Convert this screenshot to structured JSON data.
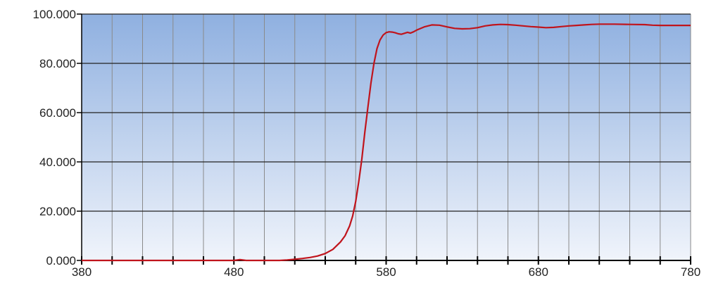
{
  "chart_data": {
    "type": "line",
    "title": "",
    "xlabel": "",
    "ylabel": "",
    "xlim": [
      380,
      780
    ],
    "ylim": [
      0,
      100
    ],
    "x_ticks": [
      380,
      400,
      420,
      440,
      460,
      480,
      500,
      520,
      540,
      560,
      580,
      600,
      620,
      640,
      660,
      680,
      700,
      720,
      740,
      760,
      780
    ],
    "x_tick_labels": [
      "380",
      "480",
      "580",
      "680",
      "780"
    ],
    "x_tick_label_values": [
      380,
      480,
      580,
      680,
      780
    ],
    "y_ticks": [
      0,
      20,
      40,
      60,
      80,
      100
    ],
    "y_tick_labels": [
      "0.000",
      "20.000",
      "40.000",
      "60.000",
      "80.000",
      "100.000"
    ],
    "grid": true,
    "plot_background": "gradient from #8fb0e0 (top) to #f0f4fb (bottom)",
    "series": [
      {
        "color": "#c0141c",
        "x": [
          380,
          420,
          460,
          480,
          484,
          488,
          500,
          510,
          515,
          520,
          525,
          530,
          535,
          540,
          545,
          550,
          553,
          556,
          558,
          560,
          562,
          564,
          566,
          568,
          570,
          572,
          574,
          576,
          578,
          580,
          582,
          584,
          586,
          588,
          590,
          592,
          594,
          596,
          598,
          600,
          605,
          610,
          615,
          620,
          625,
          630,
          635,
          640,
          645,
          650,
          655,
          660,
          665,
          670,
          675,
          680,
          685,
          690,
          695,
          700,
          705,
          710,
          715,
          720,
          730,
          740,
          750,
          755,
          760,
          770,
          780
        ],
        "y": [
          0,
          0,
          0,
          0,
          0.3,
          0,
          0,
          0,
          0.2,
          0.5,
          0.8,
          1.2,
          1.8,
          2.8,
          4.5,
          7.5,
          10,
          14,
          18,
          24,
          32,
          41,
          52,
          62,
          72,
          80,
          86,
          89.5,
          91.5,
          92.5,
          92.8,
          92.7,
          92.4,
          92,
          91.8,
          92.2,
          92.6,
          92.3,
          92.8,
          93.5,
          94.8,
          95.6,
          95.5,
          94.8,
          94.2,
          94,
          94.1,
          94.5,
          95.2,
          95.6,
          95.8,
          95.7,
          95.5,
          95.2,
          94.9,
          94.7,
          94.5,
          94.6,
          94.9,
          95.2,
          95.4,
          95.6,
          95.8,
          95.9,
          95.9,
          95.8,
          95.7,
          95.5,
          95.4,
          95.4,
          95.4
        ]
      }
    ]
  }
}
